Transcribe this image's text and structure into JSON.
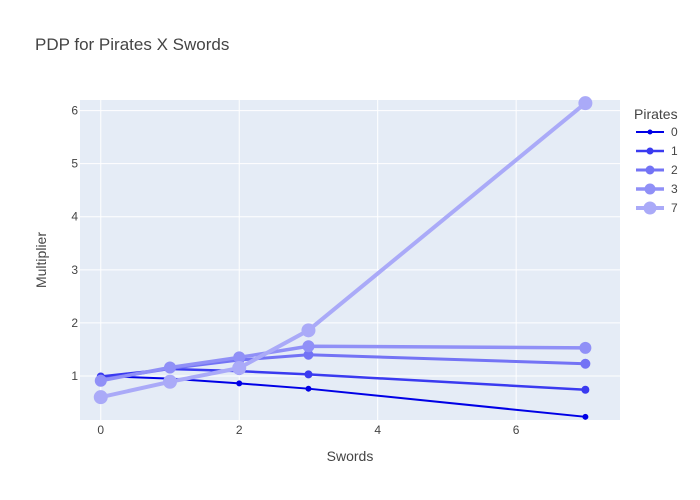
{
  "chart_data": {
    "type": "line",
    "title": "PDP for Pirates X Swords",
    "xlabel": "Swords",
    "ylabel": "Multiplier",
    "xlim": [
      -0.3,
      7.5
    ],
    "ylim": [
      0.17,
      6.2
    ],
    "xticks": [
      0,
      2,
      4,
      6
    ],
    "yticks": [
      1,
      2,
      3,
      4,
      5,
      6
    ],
    "grid": true,
    "legend": {
      "title": "Pirates",
      "placement": "right"
    },
    "series": [
      {
        "name": "0",
        "color": "#0000e6",
        "x": [
          0,
          1,
          2,
          3,
          7
        ],
        "y": [
          1.0,
          0.95,
          0.86,
          0.76,
          0.23
        ]
      },
      {
        "name": "1",
        "color": "#3a3af0",
        "x": [
          0,
          1,
          2,
          3,
          7
        ],
        "y": [
          0.99,
          1.13,
          1.09,
          1.03,
          0.74
        ]
      },
      {
        "name": "2",
        "color": "#7373f5",
        "x": [
          0,
          1,
          2,
          3,
          7
        ],
        "y": [
          0.93,
          1.14,
          1.3,
          1.4,
          1.23
        ]
      },
      {
        "name": "3",
        "color": "#9090f7",
        "x": [
          0,
          1,
          2,
          3,
          7
        ],
        "y": [
          0.91,
          1.16,
          1.35,
          1.56,
          1.53
        ]
      },
      {
        "name": "7",
        "color": "#aaaaf8",
        "x": [
          0,
          1,
          2,
          3,
          7
        ],
        "y": [
          0.6,
          0.89,
          1.15,
          1.86,
          6.14
        ]
      }
    ]
  }
}
